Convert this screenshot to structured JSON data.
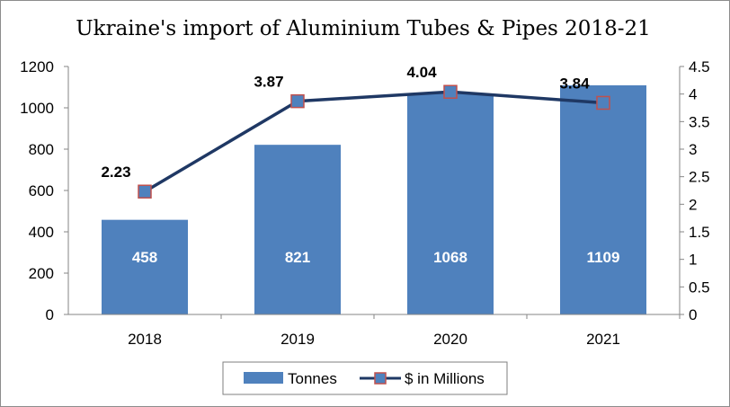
{
  "chart_data": {
    "type": "bar",
    "title": "Ukraine's import of Aluminium Tubes & Pipes 2018-21",
    "categories": [
      "2018",
      "2019",
      "2020",
      "2021"
    ],
    "series": [
      {
        "name": "Tonnes",
        "type": "bar",
        "axis": "left",
        "color": "#4f81bd",
        "values": [
          458,
          821,
          1068,
          1109
        ]
      },
      {
        "name": "$ in Millions",
        "type": "line",
        "axis": "right",
        "color": "#1f3864",
        "marker_fill": "#4f81bd",
        "marker_edge": "#c0504d",
        "values": [
          2.23,
          3.87,
          4.04,
          3.84
        ]
      }
    ],
    "y_left": {
      "min": 0,
      "max": 1200,
      "ticks": [
        "0",
        "200",
        "400",
        "600",
        "800",
        "1000",
        "1200"
      ]
    },
    "y_right": {
      "min": 0,
      "max": 4.5,
      "ticks": [
        "0",
        "0.5",
        "1",
        "1.5",
        "2",
        "2.5",
        "3",
        "3.5",
        "4",
        "4.5"
      ]
    },
    "grid": false,
    "legend_position": "bottom"
  }
}
